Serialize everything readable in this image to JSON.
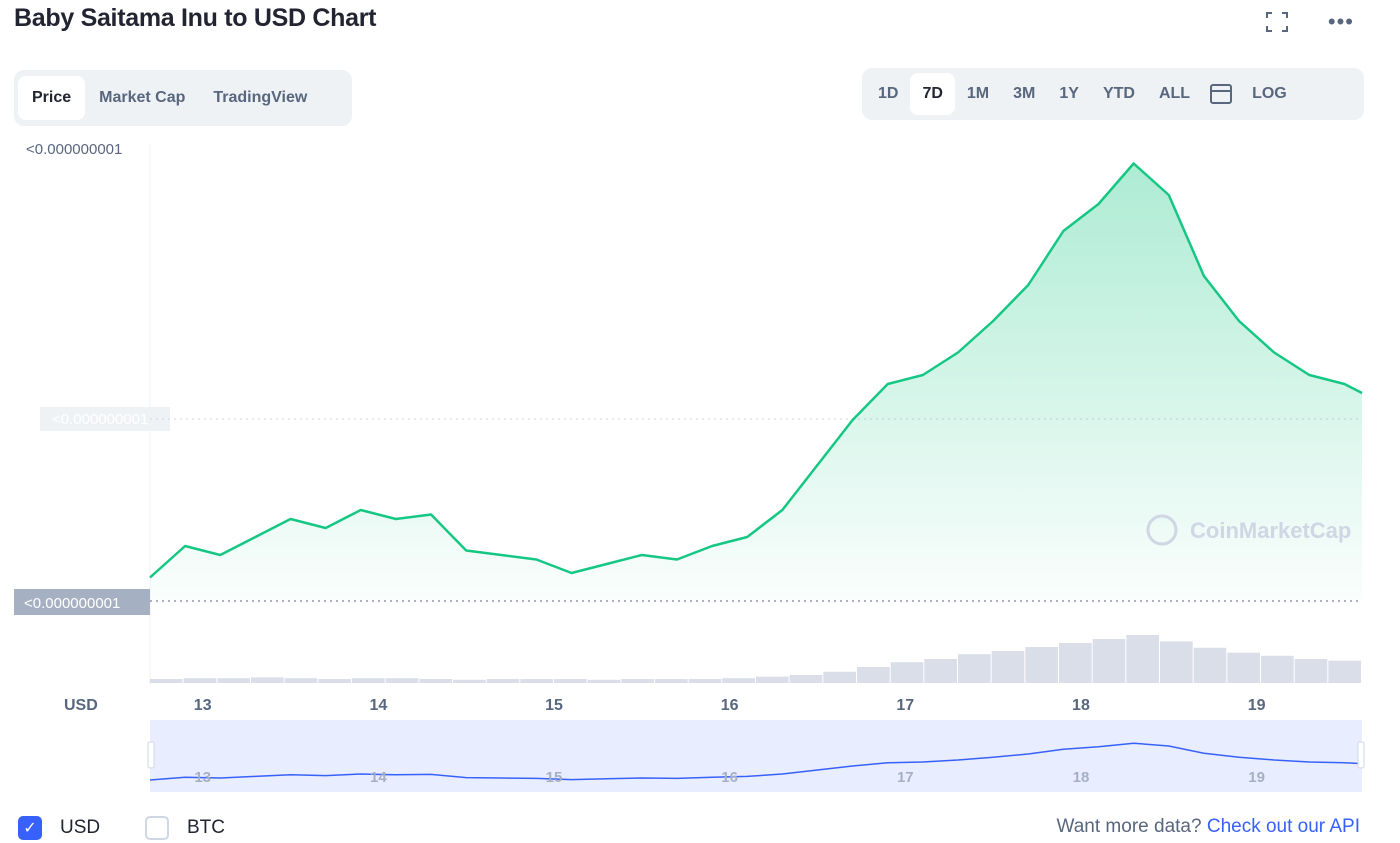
{
  "title": "Baby Saitama Inu to USD Chart",
  "icons": {
    "fullscreen": "fullscreen-icon",
    "more": "more-icon",
    "calendar": "calendar-icon",
    "check": "check-icon"
  },
  "tabs": [
    {
      "label": "Price",
      "active": true
    },
    {
      "label": "Market Cap",
      "active": false
    },
    {
      "label": "TradingView",
      "active": false
    }
  ],
  "ranges": [
    {
      "label": "1D",
      "active": false
    },
    {
      "label": "7D",
      "active": true
    },
    {
      "label": "1M",
      "active": false
    },
    {
      "label": "3M",
      "active": false
    },
    {
      "label": "1Y",
      "active": false
    },
    {
      "label": "YTD",
      "active": false
    },
    {
      "label": "ALL",
      "active": false
    },
    {
      "label": "LOG",
      "active": false
    }
  ],
  "currencies": [
    {
      "label": "USD",
      "checked": true
    },
    {
      "label": "BTC",
      "checked": false
    }
  ],
  "api": {
    "prefix": "Want more data?",
    "link": "Check out our API"
  },
  "colors": {
    "up": "#16c784",
    "down": "#ea3943",
    "volume": "#cfd6e4",
    "brush": "#3861fb",
    "accent": "#3861fb"
  },
  "chart_data": {
    "type": "line",
    "ylabel": "USD",
    "y_ticks": [
      "<0.000000001",
      "<0.000000001"
    ],
    "current_price_label": "<0.000000001",
    "x_ticks": [
      "13",
      "14",
      "15",
      "16",
      "17",
      "18",
      "19"
    ],
    "watermark": "CoinMarketCap",
    "grid": false,
    "legend": "none",
    "series": [
      {
        "x": [
          12.7,
          12.9,
          13.1,
          13.3,
          13.5,
          13.7,
          13.9,
          14.1,
          14.3,
          14.5,
          14.7,
          14.9,
          15.1,
          15.3,
          15.5,
          15.7,
          15.9,
          16.1,
          16.3,
          16.5,
          16.7,
          16.9,
          17.1,
          17.3,
          17.5,
          17.7,
          17.9,
          18.1,
          18.3,
          18.5,
          18.7,
          18.9,
          19.1,
          19.3,
          19.5,
          19.6
        ],
        "values": [
          0.05,
          0.12,
          0.1,
          0.14,
          0.18,
          0.16,
          0.2,
          0.18,
          0.19,
          0.11,
          0.1,
          0.09,
          0.06,
          0.08,
          0.1,
          0.09,
          0.12,
          0.14,
          0.2,
          0.3,
          0.4,
          0.48,
          0.5,
          0.55,
          0.62,
          0.7,
          0.82,
          0.88,
          0.97,
          0.9,
          0.72,
          0.62,
          0.55,
          0.5,
          0.48,
          0.46
        ]
      }
    ],
    "brush_range": [
      "12.7",
      "19.6"
    ],
    "volume": [
      0.05,
      0.06,
      0.06,
      0.07,
      0.06,
      0.05,
      0.06,
      0.06,
      0.05,
      0.04,
      0.05,
      0.05,
      0.05,
      0.04,
      0.05,
      0.05,
      0.05,
      0.06,
      0.08,
      0.1,
      0.14,
      0.2,
      0.26,
      0.3,
      0.36,
      0.4,
      0.45,
      0.5,
      0.55,
      0.6,
      0.52,
      0.44,
      0.38,
      0.34,
      0.3,
      0.28
    ]
  }
}
